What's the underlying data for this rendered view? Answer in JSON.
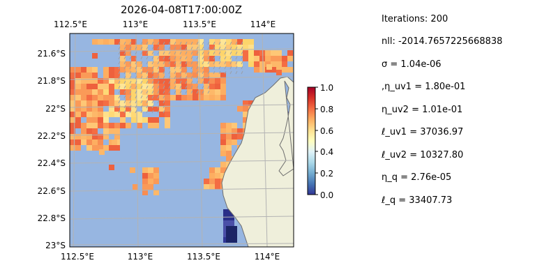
{
  "title": "2026-04-08T17:00:00Z",
  "map": {
    "lon_ticks": [
      "112.5°E",
      "113°E",
      "113.5°E",
      "114°E"
    ],
    "lat_ticks": [
      "21.6°S",
      "21.8°S",
      "22°S",
      "22.2°S",
      "22.4°S",
      "22.6°S",
      "22.8°S",
      "23°S"
    ],
    "ocean_color": "#97b6e1",
    "land_color": "#efefdb",
    "grid_color": "#b3b3b3"
  },
  "colorbar": {
    "ticks": [
      "1.0",
      "0.8",
      "0.6",
      "0.4",
      "0.2",
      "0.0"
    ],
    "colormap": "RdYlBu_r"
  },
  "params": [
    "Iterations: 200",
    "nll: -2014.7657225668838",
    "σ = 1.04e-06",
    ",η_uv1 = 1.80e-01",
    "η_uv2 = 1.01e-01",
    "ℓ_uv1 = 37036.97",
    "ℓ_uv2 = 10327.80",
    "η_q = 2.76e-05",
    "ℓ_q = 33407.73"
  ]
}
